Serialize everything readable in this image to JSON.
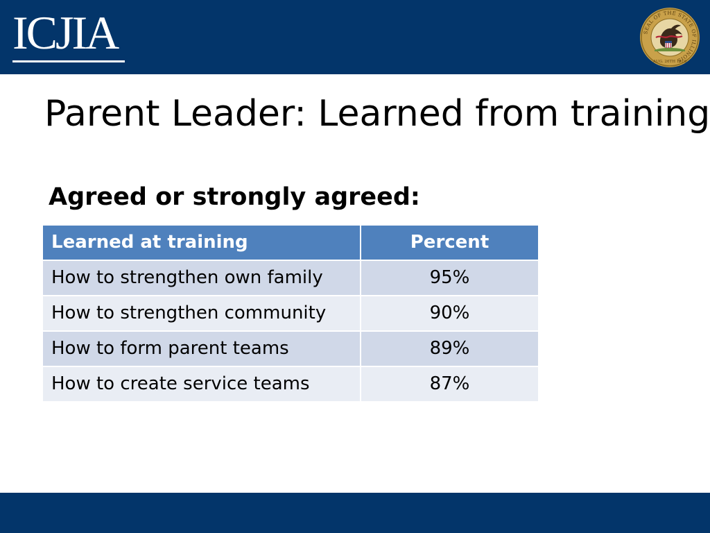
{
  "header": {
    "logo_text": "ICJIA",
    "seal_outer_text": "SEAL OF THE STATE OF ILLINOIS",
    "seal_date_text": "AUG. 26TH 1818"
  },
  "slide": {
    "title": "Parent Leader: Learned from training",
    "subtitle": "Agreed or strongly agreed:"
  },
  "table": {
    "columns": [
      "Learned at training",
      "Percent"
    ],
    "rows": [
      {
        "item": "How to strengthen own family",
        "percent": "95%"
      },
      {
        "item": "How to strengthen community",
        "percent": "90%"
      },
      {
        "item": "How to form parent teams",
        "percent": "89%"
      },
      {
        "item": "How to create service teams",
        "percent": "87%"
      }
    ]
  },
  "colors": {
    "header_navy": "#03356a",
    "table_header": "#4f81bd",
    "row_dark": "#d0d8e8",
    "row_light": "#e9edf4"
  }
}
